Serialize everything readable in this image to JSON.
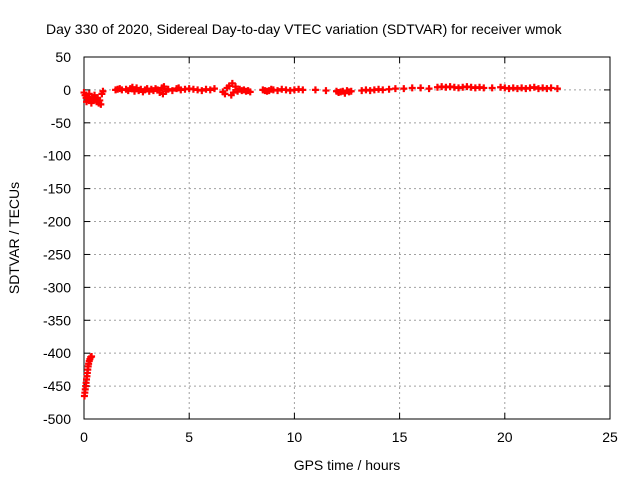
{
  "chart_data": {
    "type": "scatter",
    "title": "Day 330 of 2020, Sidereal Day-to-day VTEC variation (SDTVAR) for receiver wmok",
    "xlabel": "GPS time / hours",
    "ylabel": "SDTVAR / TECUs",
    "xlim": [
      0,
      25
    ],
    "ylim": [
      -500,
      50
    ],
    "xticks": [
      0,
      5,
      10,
      15,
      20,
      25
    ],
    "yticks": [
      50,
      0,
      -50,
      -100,
      -150,
      -200,
      -250,
      -300,
      -350,
      -400,
      -450,
      -500
    ],
    "grid": true,
    "marker": "plus",
    "color": "#ff0000",
    "series": [
      {
        "points": [
          [
            0.02,
            -465
          ],
          [
            0.04,
            -460
          ],
          [
            0.06,
            -455
          ],
          [
            0.08,
            -450
          ],
          [
            0.1,
            -445
          ],
          [
            0.12,
            -440
          ],
          [
            0.14,
            -435
          ],
          [
            0.16,
            -430
          ],
          [
            0.18,
            -425
          ],
          [
            0.2,
            -420
          ],
          [
            0.22,
            -416
          ],
          [
            0.25,
            -412
          ],
          [
            0.28,
            -409
          ],
          [
            0.32,
            -406
          ],
          [
            0.36,
            -405
          ],
          [
            0.0,
            -4
          ],
          [
            0.05,
            -8
          ],
          [
            0.1,
            -12
          ],
          [
            0.12,
            -18
          ],
          [
            0.15,
            -10
          ],
          [
            0.2,
            -15
          ],
          [
            0.25,
            -6
          ],
          [
            0.3,
            -14
          ],
          [
            0.35,
            -20
          ],
          [
            0.4,
            -12
          ],
          [
            0.45,
            -16
          ],
          [
            0.5,
            -8
          ],
          [
            0.55,
            -14
          ],
          [
            0.6,
            -18
          ],
          [
            0.65,
            -12
          ],
          [
            0.7,
            -20
          ],
          [
            0.75,
            -16
          ],
          [
            0.8,
            -22
          ],
          [
            0.85,
            -6
          ],
          [
            0.9,
            -2
          ],
          [
            1.5,
            0
          ],
          [
            1.6,
            1
          ],
          [
            1.7,
            2
          ],
          [
            1.8,
            0
          ],
          [
            2.0,
            1
          ],
          [
            2.1,
            -1
          ],
          [
            2.2,
            2
          ],
          [
            2.3,
            4
          ],
          [
            2.4,
            -2
          ],
          [
            2.5,
            3
          ],
          [
            2.6,
            -1
          ],
          [
            2.7,
            1
          ],
          [
            2.8,
            -3
          ],
          [
            2.9,
            0
          ],
          [
            3.0,
            2
          ],
          [
            3.1,
            -2
          ],
          [
            3.2,
            1
          ],
          [
            3.3,
            -1
          ],
          [
            3.4,
            2
          ],
          [
            3.5,
            0
          ],
          [
            3.6,
            -4
          ],
          [
            3.7,
            3
          ],
          [
            3.75,
            -6
          ],
          [
            3.8,
            5
          ],
          [
            3.9,
            -2
          ],
          [
            4.0,
            1
          ],
          [
            4.2,
            -1
          ],
          [
            4.4,
            2
          ],
          [
            4.5,
            3
          ],
          [
            4.6,
            0
          ],
          [
            4.8,
            1
          ],
          [
            5.0,
            2
          ],
          [
            5.2,
            1
          ],
          [
            5.4,
            0
          ],
          [
            5.6,
            -1
          ],
          [
            5.8,
            1
          ],
          [
            6.0,
            0
          ],
          [
            6.2,
            2
          ],
          [
            6.6,
            -3
          ],
          [
            6.7,
            -6
          ],
          [
            6.8,
            3
          ],
          [
            6.9,
            6
          ],
          [
            7.0,
            -8
          ],
          [
            7.05,
            10
          ],
          [
            7.1,
            -4
          ],
          [
            7.2,
            5
          ],
          [
            7.3,
            -2
          ],
          [
            7.4,
            1
          ],
          [
            7.5,
            -1
          ],
          [
            7.6,
            0
          ],
          [
            7.7,
            -2
          ],
          [
            7.8,
            -1
          ],
          [
            7.9,
            -3
          ],
          [
            8.5,
            0
          ],
          [
            8.6,
            -1
          ],
          [
            8.7,
            -2
          ],
          [
            8.8,
            -1
          ],
          [
            8.9,
            1
          ],
          [
            9.0,
            0
          ],
          [
            9.2,
            -1
          ],
          [
            9.4,
            1
          ],
          [
            9.6,
            0
          ],
          [
            9.8,
            -1
          ],
          [
            10.0,
            0
          ],
          [
            10.2,
            1
          ],
          [
            10.4,
            0
          ],
          [
            11.0,
            0
          ],
          [
            11.5,
            -1
          ],
          [
            12.0,
            -2
          ],
          [
            12.1,
            -4
          ],
          [
            12.2,
            -3
          ],
          [
            12.3,
            -2
          ],
          [
            12.4,
            -5
          ],
          [
            12.5,
            -1
          ],
          [
            12.6,
            -3
          ],
          [
            12.7,
            -2
          ],
          [
            13.2,
            -1
          ],
          [
            13.4,
            0
          ],
          [
            13.6,
            -1
          ],
          [
            13.8,
            0
          ],
          [
            14.0,
            1
          ],
          [
            14.2,
            0
          ],
          [
            14.5,
            1
          ],
          [
            14.8,
            2
          ],
          [
            15.2,
            2
          ],
          [
            15.6,
            3
          ],
          [
            16.0,
            3
          ],
          [
            16.4,
            2
          ],
          [
            16.8,
            4
          ],
          [
            17.0,
            5
          ],
          [
            17.2,
            4
          ],
          [
            17.4,
            5
          ],
          [
            17.6,
            4
          ],
          [
            17.8,
            3
          ],
          [
            18.0,
            4
          ],
          [
            18.2,
            5
          ],
          [
            18.4,
            4
          ],
          [
            18.6,
            3
          ],
          [
            18.8,
            4
          ],
          [
            19.0,
            3
          ],
          [
            19.4,
            3
          ],
          [
            19.8,
            4
          ],
          [
            20.0,
            3
          ],
          [
            20.2,
            2
          ],
          [
            20.4,
            3
          ],
          [
            20.6,
            2
          ],
          [
            20.8,
            3
          ],
          [
            21.0,
            2
          ],
          [
            21.2,
            3
          ],
          [
            21.4,
            4
          ],
          [
            21.6,
            2
          ],
          [
            21.8,
            3
          ],
          [
            22.0,
            2
          ],
          [
            22.2,
            3
          ],
          [
            22.5,
            2
          ]
        ]
      }
    ]
  }
}
